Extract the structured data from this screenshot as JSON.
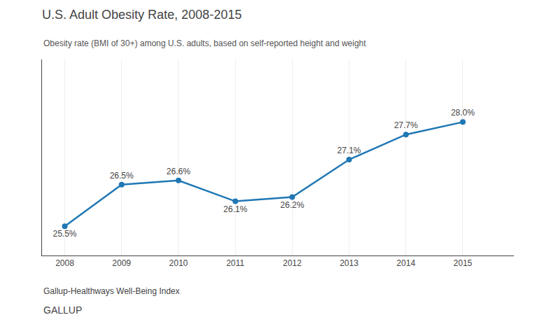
{
  "chart_data": {
    "type": "line",
    "title": "U.S. Adult Obesity Rate, 2008-2015",
    "subtitle": "Obesity rate (BMI of 30+) among U.S. adults, based on self-reported height and weight",
    "annotations": [
      "Gallup-Healthways Well-Being Index",
      "GALLUP"
    ],
    "x": [
      2008,
      2009,
      2010,
      2011,
      2012,
      2013,
      2014,
      2015
    ],
    "values": [
      25.5,
      26.5,
      26.6,
      26.1,
      26.2,
      27.1,
      27.7,
      28.0
    ],
    "value_labels": [
      "25.5%",
      "26.5%",
      "26.6%",
      "26.1%",
      "26.2%",
      "27.1%",
      "27.7%",
      "28.0%"
    ],
    "data_labels": true,
    "xlim": [
      2007.6,
      2015.9
    ],
    "xticks": [
      2008,
      2009,
      2010,
      2011,
      2012,
      2013,
      2014,
      2015
    ],
    "ylim": [
      24.8,
      29.5
    ],
    "tick_labels": "x",
    "grid": true,
    "marker": "circle"
  }
}
